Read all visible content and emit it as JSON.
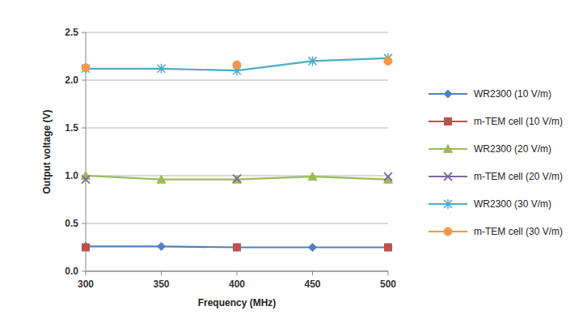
{
  "chart_data": {
    "type": "line",
    "x_label": "Frequency (MHz)",
    "y_label": "Output voltage (V)",
    "x": [
      300,
      350,
      400,
      450,
      500
    ],
    "xlim": [
      300,
      500
    ],
    "xticks": [
      300,
      350,
      400,
      450,
      500
    ],
    "ylim": [
      0,
      2.5
    ],
    "yticks": [
      {
        "value": 0,
        "label": "0.0"
      },
      {
        "value": 0.5,
        "label": "0.5"
      },
      {
        "value": 1,
        "label": "1.0"
      },
      {
        "value": 1.5,
        "label": "1.5"
      },
      {
        "value": 2,
        "label": "2.0"
      },
      {
        "value": 2.5,
        "label": "2.5"
      }
    ],
    "grid": true,
    "legend": "right",
    "series": [
      {
        "name": "WR2300 (10 V/m)",
        "color": "#4f81bd",
        "marker": "diamond",
        "values": [
          0.26,
          0.26,
          0.25,
          0.25,
          0.25
        ]
      },
      {
        "name": "m-TEM cell (10 V/m)",
        "color": "#c0504d",
        "marker": "square",
        "values": [
          0.25,
          null,
          0.25,
          null,
          0.25
        ]
      },
      {
        "name": "WR2300 (20 V/m)",
        "color": "#9bbb59",
        "marker": "triangle",
        "values": [
          1.0,
          0.96,
          0.96,
          0.99,
          0.96
        ]
      },
      {
        "name": "m-TEM cell (20 V/m)",
        "color": "#8064a2",
        "marker": "x",
        "values": [
          0.96,
          null,
          0.97,
          null,
          0.99
        ]
      },
      {
        "name": "WR2300 (30 V/m)",
        "color": "#4bacc6",
        "marker": "star",
        "values": [
          2.12,
          2.12,
          2.1,
          2.2,
          2.23
        ]
      },
      {
        "name": "m-TEM cell (30 V/m)",
        "color": "#f79646",
        "marker": "circle",
        "values": [
          2.13,
          null,
          2.16,
          null,
          2.2
        ]
      }
    ]
  }
}
